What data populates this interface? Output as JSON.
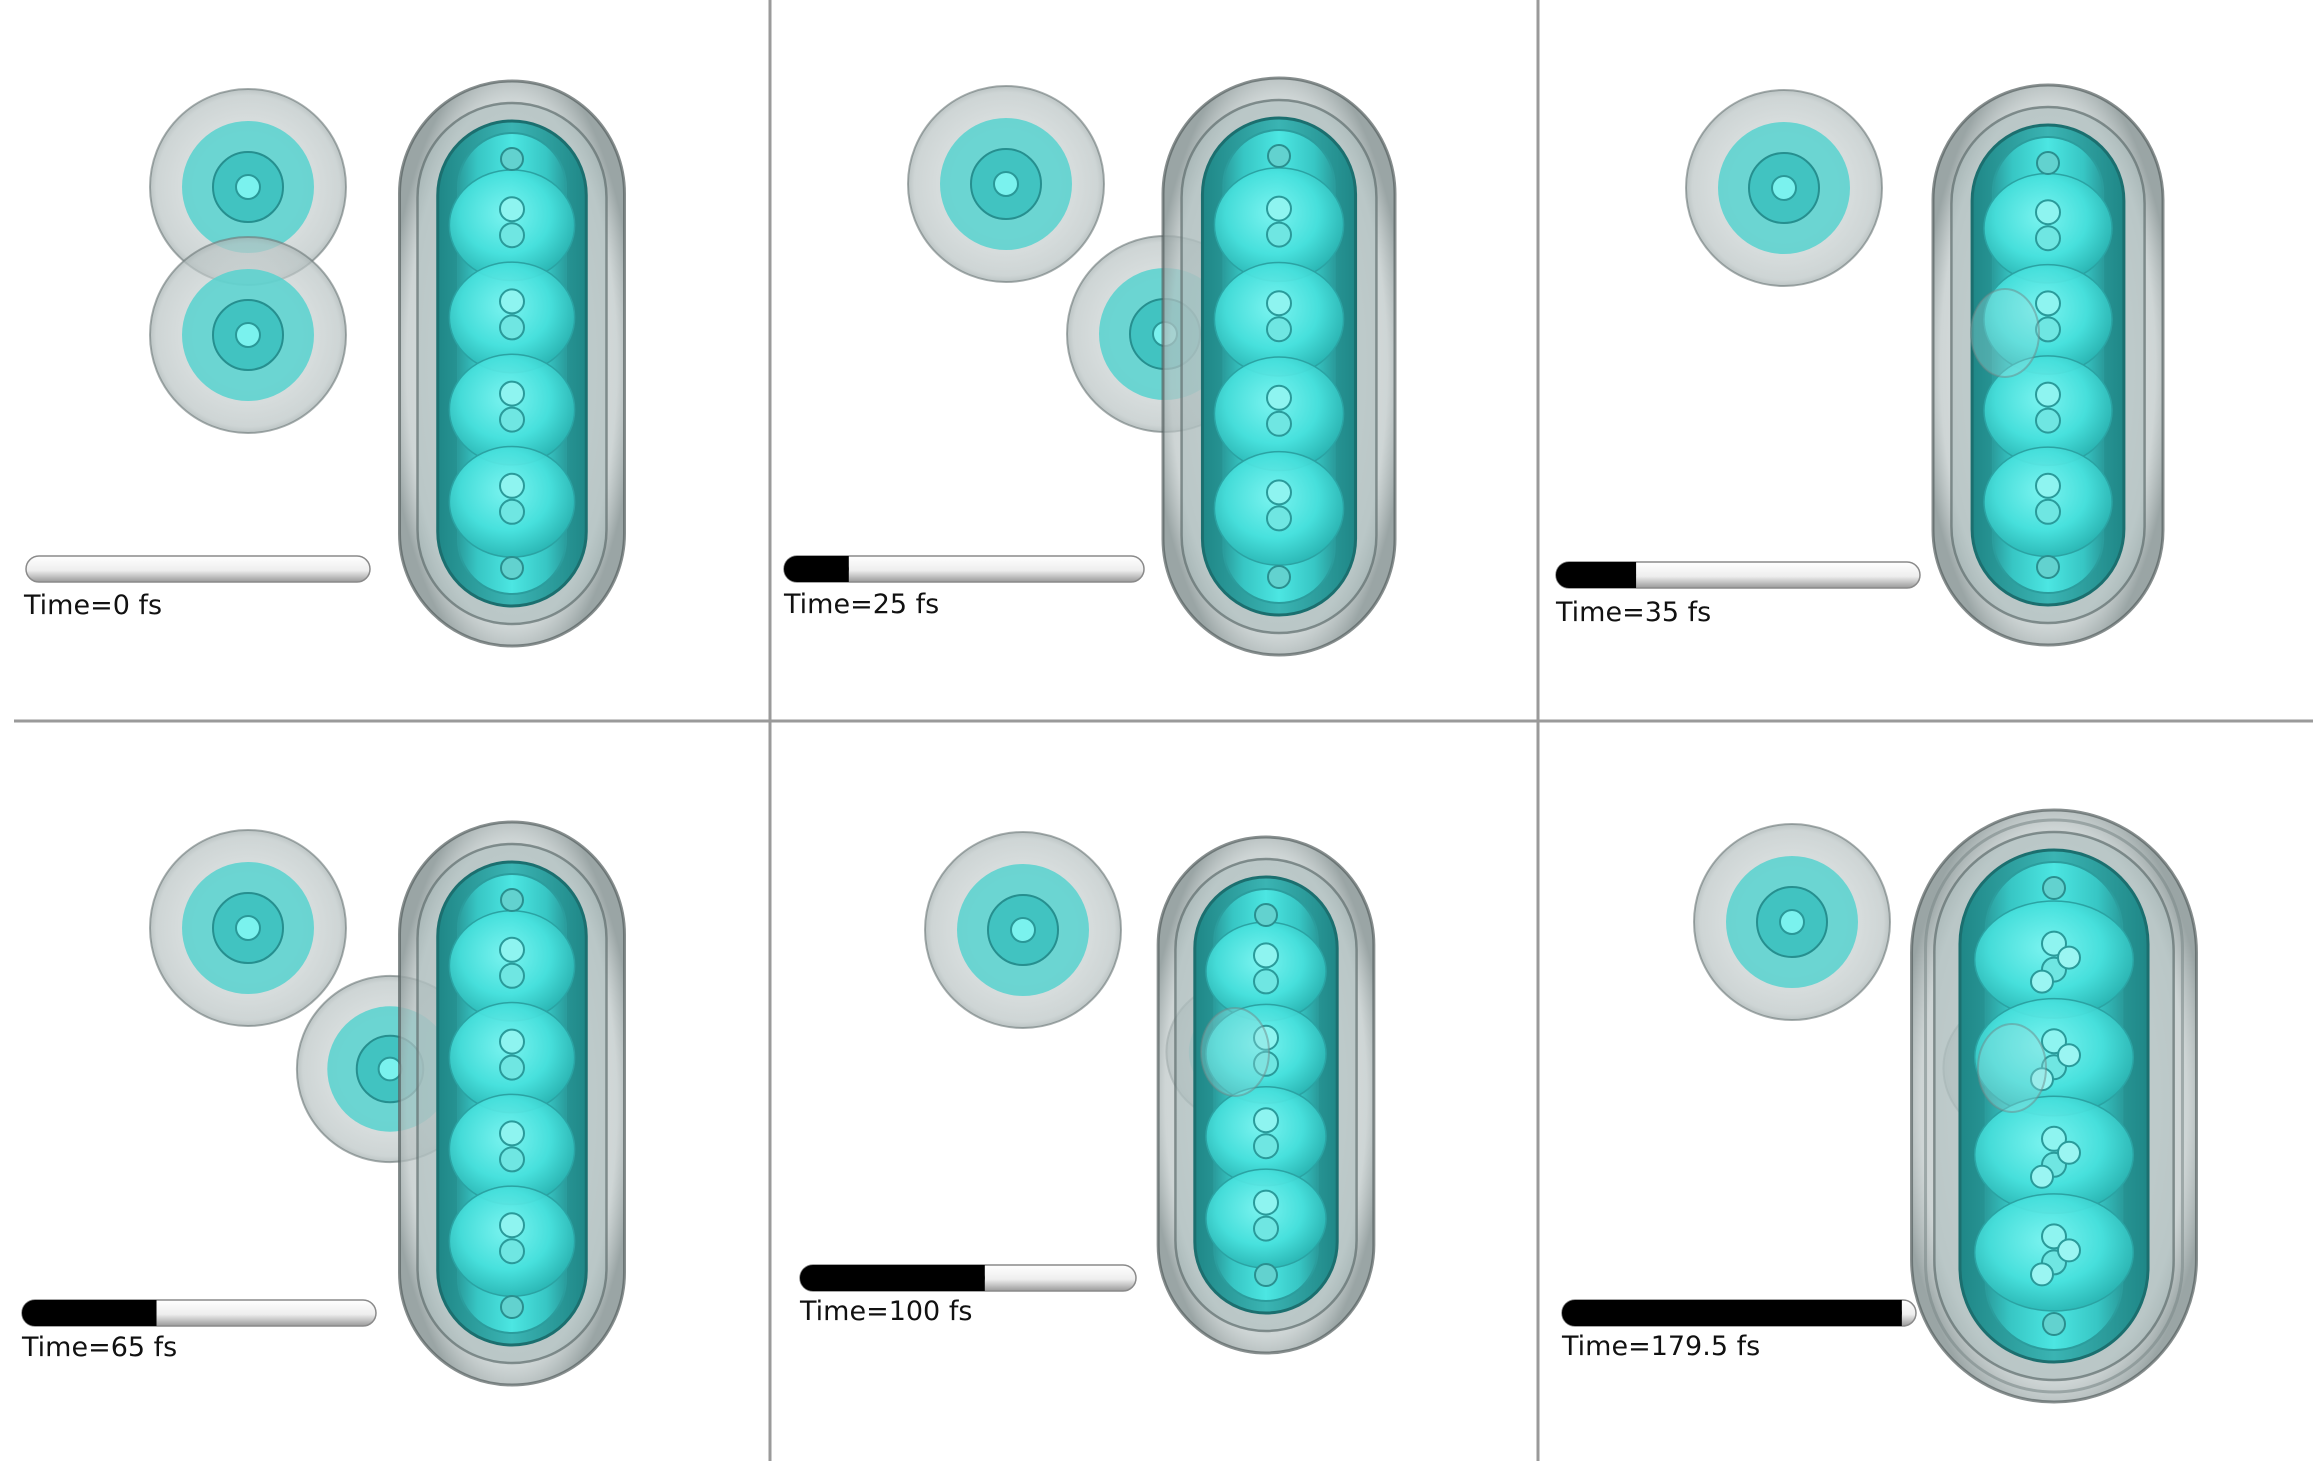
{
  "colors": {
    "background": "#ffffff",
    "divider": "#9a9a9a",
    "outer_shell": "#c8cfcf",
    "shell_edge": "#555f5f",
    "inner_shell": "#2aa0a0",
    "density_core": "#48e6e2",
    "atom": "#7ef0ec",
    "progress_fill": "#000000",
    "progress_track": "#f2f2f2"
  },
  "frames": [
    {
      "label": "Time=0 fs",
      "progress": 0.0,
      "hydrogen_separation": "bonded",
      "molecule_stretch": 0.0
    },
    {
      "label": "Time=25 fs",
      "progress": 0.18,
      "hydrogen_separation": "one-approaching",
      "molecule_stretch": 0.0
    },
    {
      "label": "Time=35 fs",
      "progress": 0.22,
      "hydrogen_separation": "one-merged",
      "molecule_stretch": 0.0
    },
    {
      "label": "Time=65 fs",
      "progress": 0.38,
      "hydrogen_separation": "one-attached",
      "molecule_stretch": 0.0
    },
    {
      "label": "Time=100 fs",
      "progress": 0.55,
      "hydrogen_separation": "one-absorbed",
      "molecule_stretch": 0.05
    },
    {
      "label": "Time=179.5 fs",
      "progress": 0.96,
      "hydrogen_separation": "one-absorbed",
      "molecule_stretch": 0.25
    }
  ]
}
